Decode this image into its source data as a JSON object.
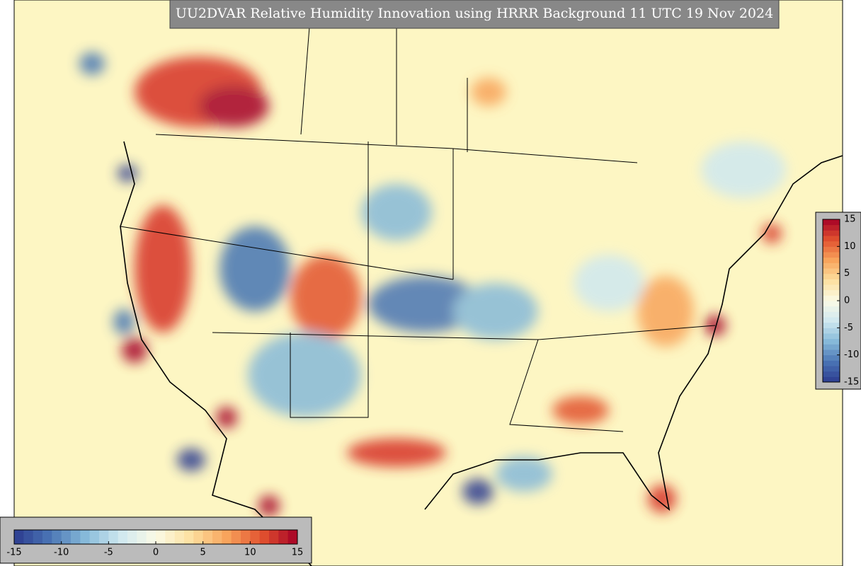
{
  "title": "UU2DVAR Relative Humidity Innovation using HRRR Background 11 UTC 19 Nov 2024",
  "colorbar": {
    "range": [
      -15,
      15
    ],
    "ticks": [
      -15,
      -10,
      -5,
      0,
      5,
      10,
      15
    ],
    "colors": [
      "#2c3b8f",
      "#4a74b4",
      "#86b9d9",
      "#cfe8f0",
      "#fbfbe6",
      "#fde0a0",
      "#f8a45c",
      "#e2522f",
      "#a50026"
    ]
  }
}
